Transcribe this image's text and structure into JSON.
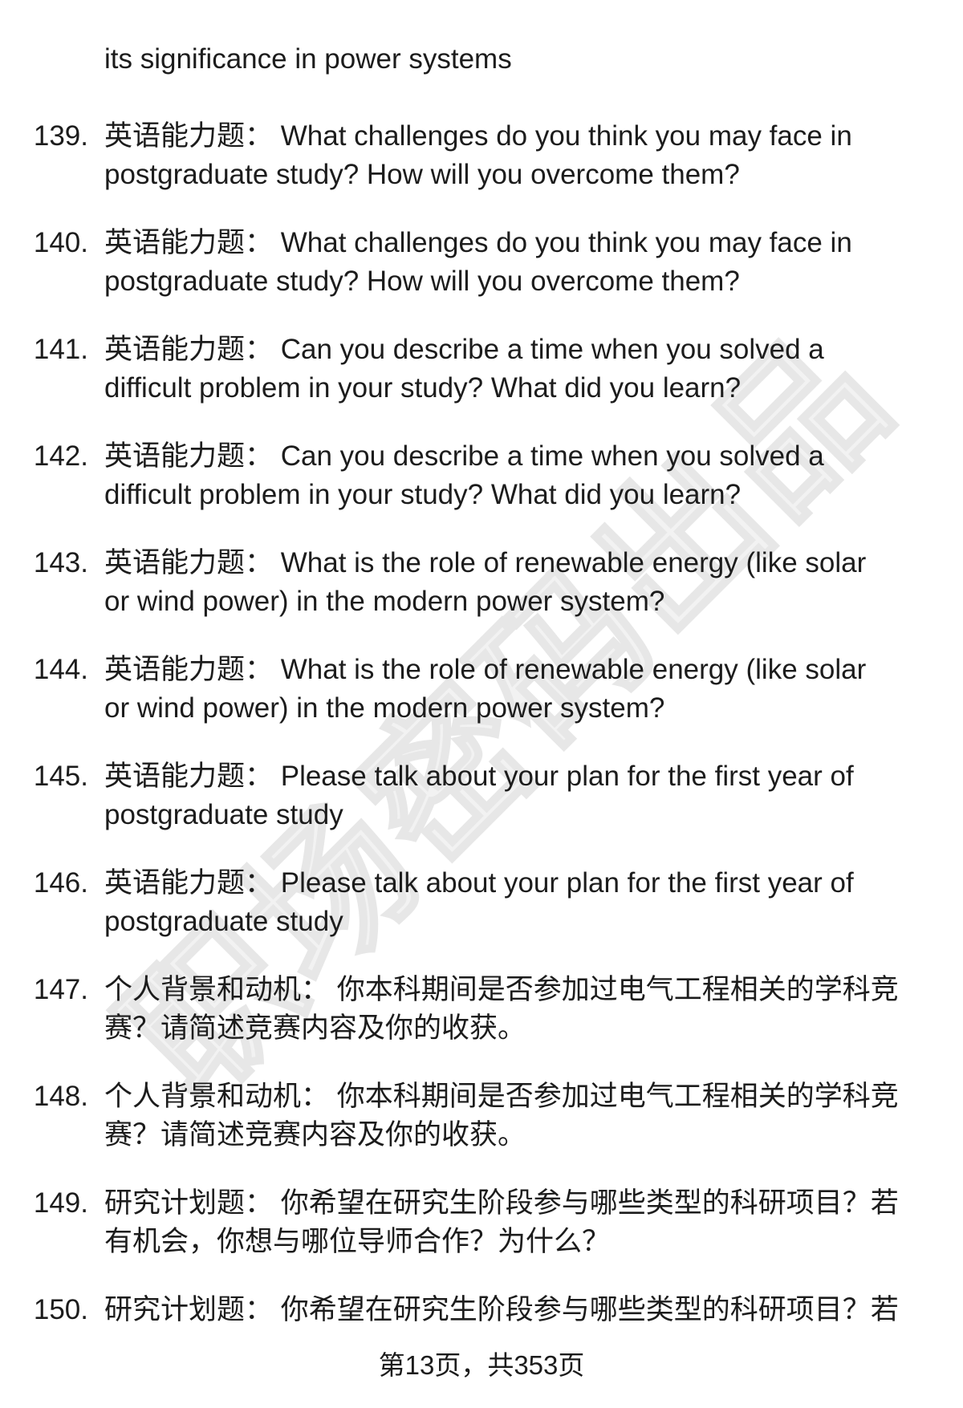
{
  "page": {
    "continuation_line": "its significance in power systems",
    "watermark": "职场密码出品",
    "footer": "第13页，共353页",
    "text_color": "#1c1c1c",
    "watermark_color": "#e7e7e7",
    "background_color": "#ffffff"
  },
  "items": [
    {
      "num": "139.",
      "lines": [
        "英语能力题： What challenges do you think you may face in",
        "postgraduate study? How will you overcome them?"
      ]
    },
    {
      "num": "140.",
      "lines": [
        "英语能力题： What challenges do you think you may face in",
        "postgraduate study? How will you overcome them?"
      ]
    },
    {
      "num": "141.",
      "lines": [
        "英语能力题： Can you describe a time when you solved a",
        "difficult problem in your study? What did you learn?"
      ]
    },
    {
      "num": "142.",
      "lines": [
        "英语能力题： Can you describe a time when you solved a",
        "difficult problem in your study? What did you learn?"
      ]
    },
    {
      "num": "143.",
      "lines": [
        "英语能力题： What is the role of renewable energy (like solar",
        "or wind power) in the modern power system?"
      ]
    },
    {
      "num": "144.",
      "lines": [
        "英语能力题： What is the role of renewable energy (like solar",
        "or wind power) in the modern power system?"
      ]
    },
    {
      "num": "145.",
      "lines": [
        "英语能力题： Please talk about your plan for the first year of",
        "postgraduate study"
      ]
    },
    {
      "num": "146.",
      "lines": [
        "英语能力题： Please talk about your plan for the first year of",
        "postgraduate study"
      ]
    },
    {
      "num": "147.",
      "lines": [
        "个人背景和动机： 你本科期间是否参加过电气工程相关的学科竞",
        "赛？请简述竞赛内容及你的收获。"
      ]
    },
    {
      "num": "148.",
      "lines": [
        "个人背景和动机： 你本科期间是否参加过电气工程相关的学科竞",
        "赛？请简述竞赛内容及你的收获。"
      ]
    },
    {
      "num": "149.",
      "lines": [
        "研究计划题： 你希望在研究生阶段参与哪些类型的科研项目？若",
        "有机会，你想与哪位导师合作？为什么？"
      ]
    },
    {
      "num": "150.",
      "lines": [
        "研究计划题： 你希望在研究生阶段参与哪些类型的科研项目？若"
      ]
    }
  ]
}
